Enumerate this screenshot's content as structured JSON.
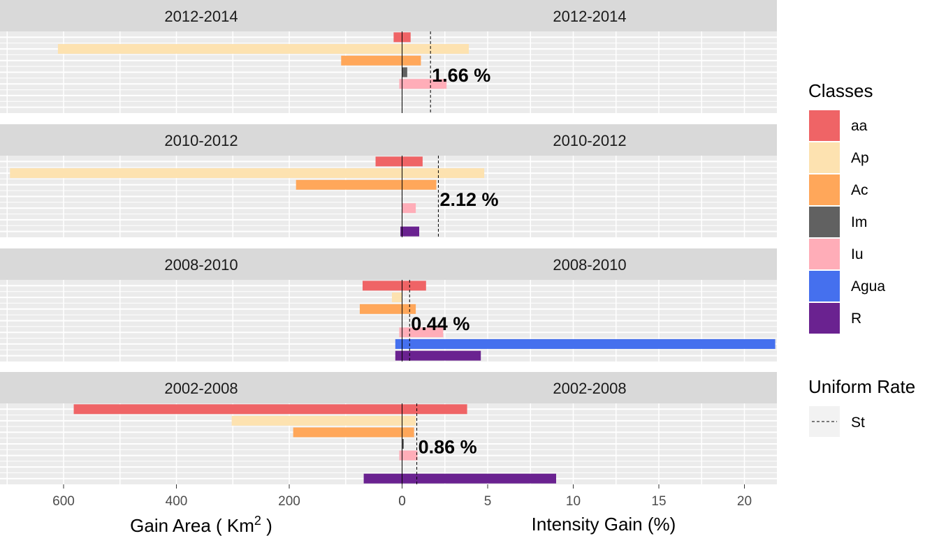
{
  "chart_data": {
    "type": "bar",
    "orientation": "horizontal",
    "layout": "4 facet rows x 2 columns (left: area, right: intensity)",
    "xlabel_left": "Gain Area ( Km",
    "xlabel_left_sup": "2",
    "xlabel_left_end": " )",
    "xlabel_right": "Intensity Gain (%)",
    "left_axis": {
      "ticks": [
        600,
        400,
        200,
        0
      ],
      "reversed": true,
      "xlim": [
        0,
        700
      ]
    },
    "right_axis": {
      "ticks": [
        0,
        5,
        10,
        15,
        20
      ],
      "xlim": [
        0,
        22
      ]
    },
    "legend": {
      "title": "Classes",
      "items": [
        {
          "name": "aa",
          "color": "#ef6466"
        },
        {
          "name": "Ap",
          "color": "#fde2b0"
        },
        {
          "name": "Ac",
          "color": "#ffa75a"
        },
        {
          "name": "Im",
          "color": "#616161"
        },
        {
          "name": "Iu",
          "color": "#ffadb8"
        },
        {
          "name": "Agua",
          "color": "#4570ee"
        },
        {
          "name": "R",
          "color": "#6a2290"
        }
      ]
    },
    "legend2": {
      "title": "Uniform Rate",
      "items": [
        {
          "name": "St",
          "linetype": "dashed"
        }
      ]
    },
    "classes": [
      "aa",
      "Ap",
      "Ac",
      "Im",
      "Iu",
      "Agua",
      "R"
    ],
    "panels": [
      {
        "period": "2012-2014",
        "uniform_rate": 1.66,
        "rate_label": "1.66 %",
        "area": [
          15,
          610,
          108,
          0,
          5,
          0,
          0
        ],
        "intensity": [
          0.5,
          3.9,
          1.1,
          0.3,
          2.6,
          0,
          0
        ]
      },
      {
        "period": "2010-2012",
        "uniform_rate": 2.12,
        "rate_label": "2.12 %",
        "area": [
          47,
          695,
          188,
          0,
          0,
          0,
          3
        ],
        "intensity": [
          1.2,
          4.8,
          2.0,
          0,
          0.8,
          0,
          1.0
        ]
      },
      {
        "period": "2008-2010",
        "uniform_rate": 0.44,
        "rate_label": "0.44 %",
        "area": [
          70,
          18,
          75,
          0,
          5,
          12,
          12
        ],
        "intensity": [
          1.4,
          0,
          0.8,
          0,
          2.4,
          21.8,
          4.6
        ]
      },
      {
        "period": "2002-2008",
        "uniform_rate": 0.86,
        "rate_label": "0.86 %",
        "area": [
          582,
          302,
          193,
          0,
          5,
          0,
          68
        ],
        "intensity": [
          3.8,
          0.8,
          0.7,
          0.1,
          0.9,
          0,
          9.0
        ]
      }
    ]
  }
}
